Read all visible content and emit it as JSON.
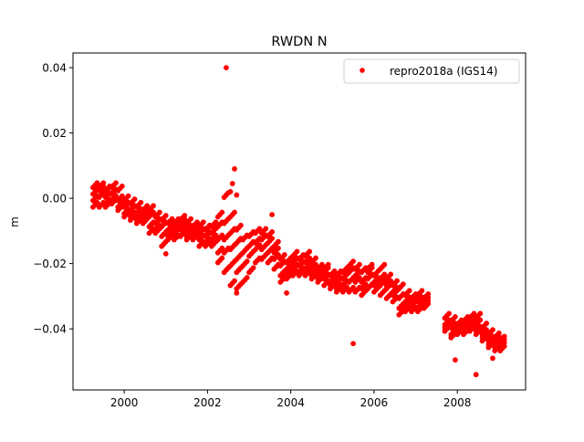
{
  "chart_data": {
    "type": "scatter",
    "title": "RWDN N",
    "xlabel": "",
    "ylabel": "m",
    "xlim": [
      1998.77,
      2009.64
    ],
    "ylim": [
      -0.0587,
      0.0445
    ],
    "xticks": [
      2000,
      2002,
      2004,
      2006,
      2008
    ],
    "xtick_labels": [
      "2000",
      "2002",
      "2004",
      "2006",
      "2008"
    ],
    "yticks": [
      0.04,
      0.02,
      0.0,
      -0.02,
      -0.04
    ],
    "ytick_labels": [
      "0.04",
      "0.02",
      "0.00",
      "−0.02",
      "−0.04"
    ],
    "grid": false,
    "legend": {
      "placement": "top-right",
      "entries": [
        "repro2018a (IGS14)"
      ]
    },
    "series": [
      {
        "name": "repro2018a (IGS14)",
        "color": "#ff0000",
        "marker": "circle",
        "samples": [
          {
            "x": 1999.3,
            "y": [
              -0.002,
              0.0,
              0.002,
              0.004
            ]
          },
          {
            "x": 1999.45,
            "y": [
              -0.002,
              0.001,
              0.003,
              0.004
            ]
          },
          {
            "x": 1999.6,
            "y": [
              -0.001,
              0.001,
              0.003,
              -0.002
            ]
          },
          {
            "x": 1999.75,
            "y": [
              -0.001,
              0.002,
              0.004,
              0.0
            ]
          },
          {
            "x": 1999.9,
            "y": [
              -0.002,
              0.0,
              0.003,
              -0.003
            ]
          },
          {
            "x": 2000.05,
            "y": [
              -0.004,
              -0.002,
              0.0,
              -0.005
            ]
          },
          {
            "x": 2000.2,
            "y": [
              -0.006,
              -0.003,
              -0.001,
              -0.005
            ]
          },
          {
            "x": 2000.35,
            "y": [
              -0.006,
              -0.004,
              -0.002,
              -0.007
            ]
          },
          {
            "x": 2000.5,
            "y": [
              -0.007,
              -0.005,
              -0.003,
              -0.004
            ]
          },
          {
            "x": 2000.65,
            "y": [
              -0.008,
              -0.005,
              -0.003,
              -0.01
            ]
          },
          {
            "x": 2000.8,
            "y": [
              -0.009,
              -0.007,
              -0.005,
              -0.01
            ]
          },
          {
            "x": 2000.95,
            "y": [
              -0.011,
              -0.008,
              -0.006,
              -0.014
            ]
          },
          {
            "x": 2001.1,
            "y": [
              -0.011,
              -0.009,
              -0.007,
              -0.012
            ]
          },
          {
            "x": 2001.25,
            "y": [
              -0.012,
              -0.01,
              -0.007,
              -0.009
            ]
          },
          {
            "x": 2001.4,
            "y": [
              -0.011,
              -0.009,
              -0.007,
              -0.006
            ]
          },
          {
            "x": 2001.55,
            "y": [
              -0.011,
              -0.009,
              -0.007,
              -0.012
            ]
          },
          {
            "x": 2001.7,
            "y": [
              -0.012,
              -0.01,
              -0.008,
              -0.009
            ]
          },
          {
            "x": 2001.85,
            "y": [
              -0.012,
              -0.01,
              -0.008,
              -0.014
            ]
          },
          {
            "x": 2002.0,
            "y": [
              -0.013,
              -0.011,
              -0.009,
              -0.014
            ]
          },
          {
            "x": 2002.15,
            "y": [
              -0.014,
              -0.012,
              -0.01,
              -0.008
            ]
          },
          {
            "x": 2002.3,
            "y": [
              -0.016,
              -0.012,
              -0.008,
              -0.005,
              -0.019
            ]
          },
          {
            "x": 2002.45,
            "y": [
              -0.022,
              -0.016,
              -0.012,
              -0.007,
              0.001
            ]
          },
          {
            "x": 2002.6,
            "y": [
              -0.026,
              -0.02,
              -0.015,
              -0.01,
              -0.005
            ]
          },
          {
            "x": 2002.75,
            "y": [
              -0.027,
              -0.022,
              -0.018,
              -0.013,
              -0.009
            ]
          },
          {
            "x": 2002.9,
            "y": [
              -0.025,
              -0.02,
              -0.016,
              -0.012
            ]
          },
          {
            "x": 2003.05,
            "y": [
              -0.022,
              -0.017,
              -0.014,
              -0.011
            ]
          },
          {
            "x": 2003.2,
            "y": [
              -0.019,
              -0.015,
              -0.013,
              -0.01
            ]
          },
          {
            "x": 2003.35,
            "y": [
              -0.018,
              -0.015,
              -0.012,
              -0.01
            ]
          },
          {
            "x": 2003.5,
            "y": [
              -0.019,
              -0.016,
              -0.013,
              -0.011
            ]
          },
          {
            "x": 2003.65,
            "y": [
              -0.021,
              -0.018,
              -0.016,
              -0.014
            ]
          },
          {
            "x": 2003.8,
            "y": [
              -0.023,
              -0.02,
              -0.018,
              -0.025
            ]
          },
          {
            "x": 2003.95,
            "y": [
              -0.024,
              -0.021,
              -0.019,
              -0.023
            ]
          },
          {
            "x": 2004.1,
            "y": [
              -0.023,
              -0.021,
              -0.019,
              -0.017
            ]
          },
          {
            "x": 2004.25,
            "y": [
              -0.023,
              -0.02,
              -0.018,
              -0.022
            ]
          },
          {
            "x": 2004.4,
            "y": [
              -0.023,
              -0.021,
              -0.019,
              -0.017
            ]
          },
          {
            "x": 2004.55,
            "y": [
              -0.024,
              -0.021,
              -0.019,
              -0.023
            ]
          },
          {
            "x": 2004.7,
            "y": [
              -0.025,
              -0.023,
              -0.021,
              -0.024
            ]
          },
          {
            "x": 2004.85,
            "y": [
              -0.026,
              -0.024,
              -0.022,
              -0.021
            ]
          },
          {
            "x": 2005.0,
            "y": [
              -0.027,
              -0.025,
              -0.023,
              -0.026
            ]
          },
          {
            "x": 2005.15,
            "y": [
              -0.028,
              -0.025,
              -0.023,
              -0.027
            ]
          },
          {
            "x": 2005.3,
            "y": [
              -0.028,
              -0.026,
              -0.024,
              -0.022
            ]
          },
          {
            "x": 2005.45,
            "y": [
              -0.028,
              -0.025,
              -0.022,
              -0.02
            ]
          },
          {
            "x": 2005.6,
            "y": [
              -0.028,
              -0.025,
              -0.023,
              -0.021
            ]
          },
          {
            "x": 2005.75,
            "y": [
              -0.027,
              -0.025,
              -0.022,
              -0.029
            ]
          },
          {
            "x": 2005.9,
            "y": [
              -0.027,
              -0.024,
              -0.022,
              -0.021
            ]
          },
          {
            "x": 2006.05,
            "y": [
              -0.028,
              -0.025,
              -0.023,
              -0.026
            ]
          },
          {
            "x": 2006.2,
            "y": [
              -0.029,
              -0.026,
              -0.024,
              -0.021
            ]
          },
          {
            "x": 2006.35,
            "y": [
              -0.03,
              -0.027,
              -0.024,
              -0.026
            ]
          },
          {
            "x": 2006.5,
            "y": [
              -0.031,
              -0.028,
              -0.026,
              -0.029
            ]
          },
          {
            "x": 2006.65,
            "y": [
              -0.033,
              -0.03,
              -0.027,
              -0.035
            ]
          },
          {
            "x": 2006.8,
            "y": [
              -0.034,
              -0.031,
              -0.029,
              -0.033
            ]
          },
          {
            "x": 2006.95,
            "y": [
              -0.034,
              -0.032,
              -0.03,
              -0.031
            ]
          },
          {
            "x": 2007.1,
            "y": [
              -0.033,
              -0.031,
              -0.029,
              -0.034
            ]
          },
          {
            "x": 2007.25,
            "y": [
              -0.033,
              -0.031,
              -0.03,
              -0.032
            ]
          },
          {
            "x": 2007.75,
            "y": [
              -0.04,
              -0.038,
              -0.036,
              -0.039
            ]
          },
          {
            "x": 2007.9,
            "y": [
              -0.041,
              -0.039,
              -0.037,
              -0.042
            ]
          },
          {
            "x": 2008.05,
            "y": [
              -0.041,
              -0.039,
              -0.038,
              -0.04
            ]
          },
          {
            "x": 2008.2,
            "y": [
              -0.04,
              -0.038,
              -0.037,
              -0.041
            ]
          },
          {
            "x": 2008.35,
            "y": [
              -0.04,
              -0.038,
              -0.036,
              -0.039
            ]
          },
          {
            "x": 2008.5,
            "y": [
              -0.04,
              -0.038,
              -0.036,
              -0.041
            ]
          },
          {
            "x": 2008.65,
            "y": [
              -0.043,
              -0.041,
              -0.039,
              -0.042
            ]
          },
          {
            "x": 2008.8,
            "y": [
              -0.045,
              -0.043,
              -0.041,
              -0.044
            ]
          },
          {
            "x": 2008.95,
            "y": [
              -0.045,
              -0.043,
              -0.042,
              -0.046
            ]
          },
          {
            "x": 2009.08,
            "y": [
              -0.046,
              -0.044,
              -0.043,
              -0.045
            ]
          }
        ],
        "outliers": [
          [
            2002.45,
            0.04
          ],
          [
            2002.65,
            0.009
          ],
          [
            2002.6,
            0.0045
          ],
          [
            2002.55,
            0.002
          ],
          [
            2002.7,
            0.001
          ],
          [
            2003.55,
            -0.005
          ],
          [
            2001.0,
            -0.017
          ],
          [
            2002.7,
            -0.029
          ],
          [
            2003.9,
            -0.029
          ],
          [
            2005.5,
            -0.0445
          ],
          [
            2007.95,
            -0.0495
          ],
          [
            2008.45,
            -0.054
          ],
          [
            2008.85,
            -0.049
          ]
        ]
      }
    ]
  }
}
